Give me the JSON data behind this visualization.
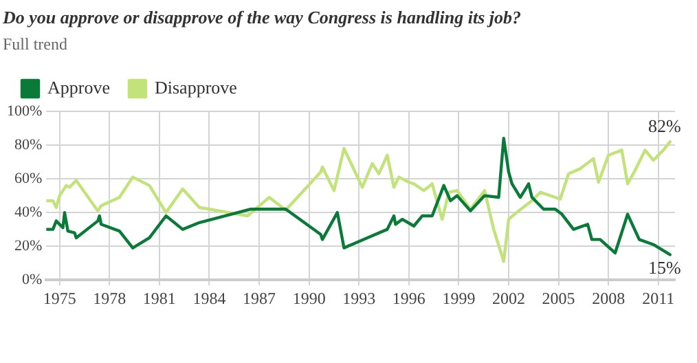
{
  "chart_data": {
    "type": "line",
    "title": "Do you approve or disapprove of the way Congress is handling its job?",
    "subtitle": "Full trend",
    "legend": "top left",
    "grid": true,
    "marker": "none",
    "line_style": "solid",
    "xlim": [
      1974.2,
      2012.0
    ],
    "xticks": [
      1975,
      1978,
      1981,
      1984,
      1987,
      1990,
      1993,
      1996,
      1999,
      2002,
      2005,
      2008,
      2011
    ],
    "ylim": [
      0,
      100
    ],
    "yticks": [
      {
        "value": 0,
        "label": "0%"
      },
      {
        "value": 20,
        "label": "20%"
      },
      {
        "value": 40,
        "label": "40%"
      },
      {
        "value": 60,
        "label": "60%"
      },
      {
        "value": 80,
        "label": "80%"
      },
      {
        "value": 100,
        "label": "100%"
      }
    ],
    "series": [
      {
        "name": "Approve",
        "color": "#0a7a38",
        "x": [
          1974.2,
          1974.6,
          1974.8,
          1975.2,
          1975.3,
          1975.5,
          1975.9,
          1976.0,
          1977.3,
          1977.4,
          1977.5,
          1978.6,
          1979.4,
          1980.4,
          1981.4,
          1982.4,
          1983.4,
          1986.5,
          1988.6,
          1990.7,
          1990.8,
          1991.7,
          1992.1,
          1993.5,
          1994.7,
          1995.1,
          1995.2,
          1995.6,
          1996.3,
          1996.8,
          1997.4,
          1998.1,
          1998.5,
          1998.9,
          1999.7,
          2000.55,
          2001.4,
          2001.7,
          2002.0,
          2002.2,
          2002.7,
          2003.2,
          2003.4,
          2004.1,
          2004.8,
          2005.2,
          2005.9,
          2006.75,
          2007.0,
          2007.5,
          2008.4,
          2009.15,
          2009.85,
          2010.7,
          2011.7
        ],
        "values": [
          30,
          30,
          35,
          31,
          40,
          29,
          28,
          25,
          35,
          38,
          33,
          29,
          19,
          25,
          38,
          30,
          34,
          42,
          42,
          27,
          24,
          40,
          19,
          25,
          30,
          38,
          33,
          36,
          32,
          38,
          38,
          56,
          47,
          50,
          41,
          50,
          49,
          84,
          64,
          57,
          49,
          57,
          49,
          42,
          42,
          39,
          30,
          33,
          24,
          24,
          16,
          39,
          24,
          21,
          15
        ]
      },
      {
        "name": "Disapprove",
        "color": "#c2e27a",
        "x": [
          1974.2,
          1974.6,
          1974.8,
          1975.0,
          1975.4,
          1975.6,
          1976.0,
          1977.3,
          1977.5,
          1978.6,
          1979.4,
          1980.4,
          1981.4,
          1982.4,
          1983.4,
          1986.3,
          1987.6,
          1988.6,
          1990.7,
          1990.8,
          1991.5,
          1992.1,
          1993.2,
          1993.8,
          1994.2,
          1994.7,
          1995.1,
          1995.4,
          1996.0,
          1996.3,
          1996.9,
          1997.4,
          1998.0,
          1998.4,
          1998.9,
          1999.7,
          2000.55,
          2001.1,
          2001.7,
          2002.0,
          2002.6,
          2003.4,
          2003.9,
          2005.1,
          2005.6,
          2006.3,
          2007.1,
          2007.4,
          2008.0,
          2008.8,
          2009.15,
          2009.6,
          2010.2,
          2010.7,
          2011.3,
          2011.7
        ],
        "values": [
          47,
          47,
          43,
          50,
          56,
          55,
          59,
          41,
          44,
          49,
          61,
          56,
          40,
          54,
          43,
          38,
          49,
          41.5,
          64,
          67,
          53,
          78,
          55,
          69,
          63,
          74,
          55,
          61,
          58,
          57,
          53,
          57,
          36,
          52,
          53,
          42,
          53,
          30,
          11,
          36,
          41,
          47,
          52,
          48,
          63,
          66,
          72,
          58,
          74,
          77,
          57,
          65,
          77,
          71,
          77,
          82
        ]
      }
    ],
    "annotations": [
      {
        "text": "82%",
        "x": 2011.7,
        "y": 82
      },
      {
        "text": "15%",
        "x": 2011.7,
        "y": 15
      }
    ]
  }
}
